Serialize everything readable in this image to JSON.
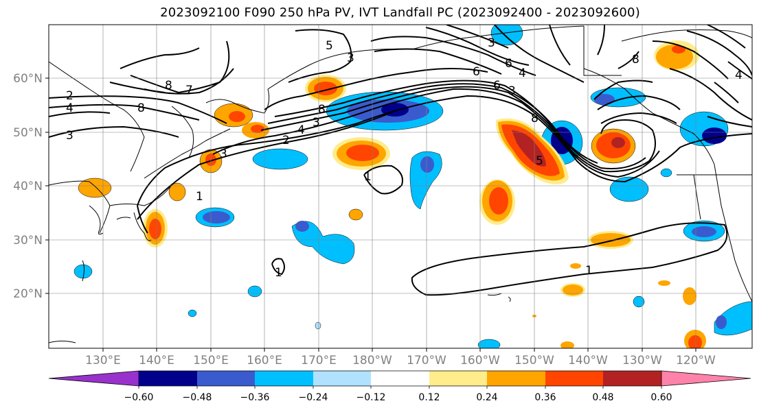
{
  "title": "2023092100 F090 250 hPa PV, IVT Landfall PC (2023092400 - 2023092600)",
  "lat_labels": [
    "60°N",
    "50°N",
    "40°N",
    "30°N",
    "20°N"
  ],
  "lon_labels": [
    "130°E",
    "140°E",
    "150°E",
    "160°E",
    "170°E",
    "180°W",
    "170°W",
    "160°W",
    "150°W",
    "140°W",
    "130°W",
    "120°W"
  ],
  "colorbar": {
    "tick_labels": [
      "−0.60",
      "−0.48",
      "−0.36",
      "−0.24",
      "−0.12",
      "0.12",
      "0.24",
      "0.36",
      "0.48",
      "0.60"
    ],
    "colors": [
      "#9932CC",
      "#00008B",
      "#3A5BCD",
      "#00BFFF",
      "#B0E2FF",
      "#FFFFFF",
      "#FFEC8B",
      "#FFA500",
      "#FF4500",
      "#B22222",
      "#FF82AB"
    ]
  },
  "contour_labels": [
    "2",
    "4",
    "3",
    "8",
    "7",
    "5",
    "3",
    "6",
    "8",
    "3",
    "4",
    "3",
    "2",
    "8",
    "6",
    "1",
    "1",
    "1",
    "6",
    "8",
    "4",
    "3",
    "4",
    "3",
    "8",
    "5",
    "1"
  ]
}
